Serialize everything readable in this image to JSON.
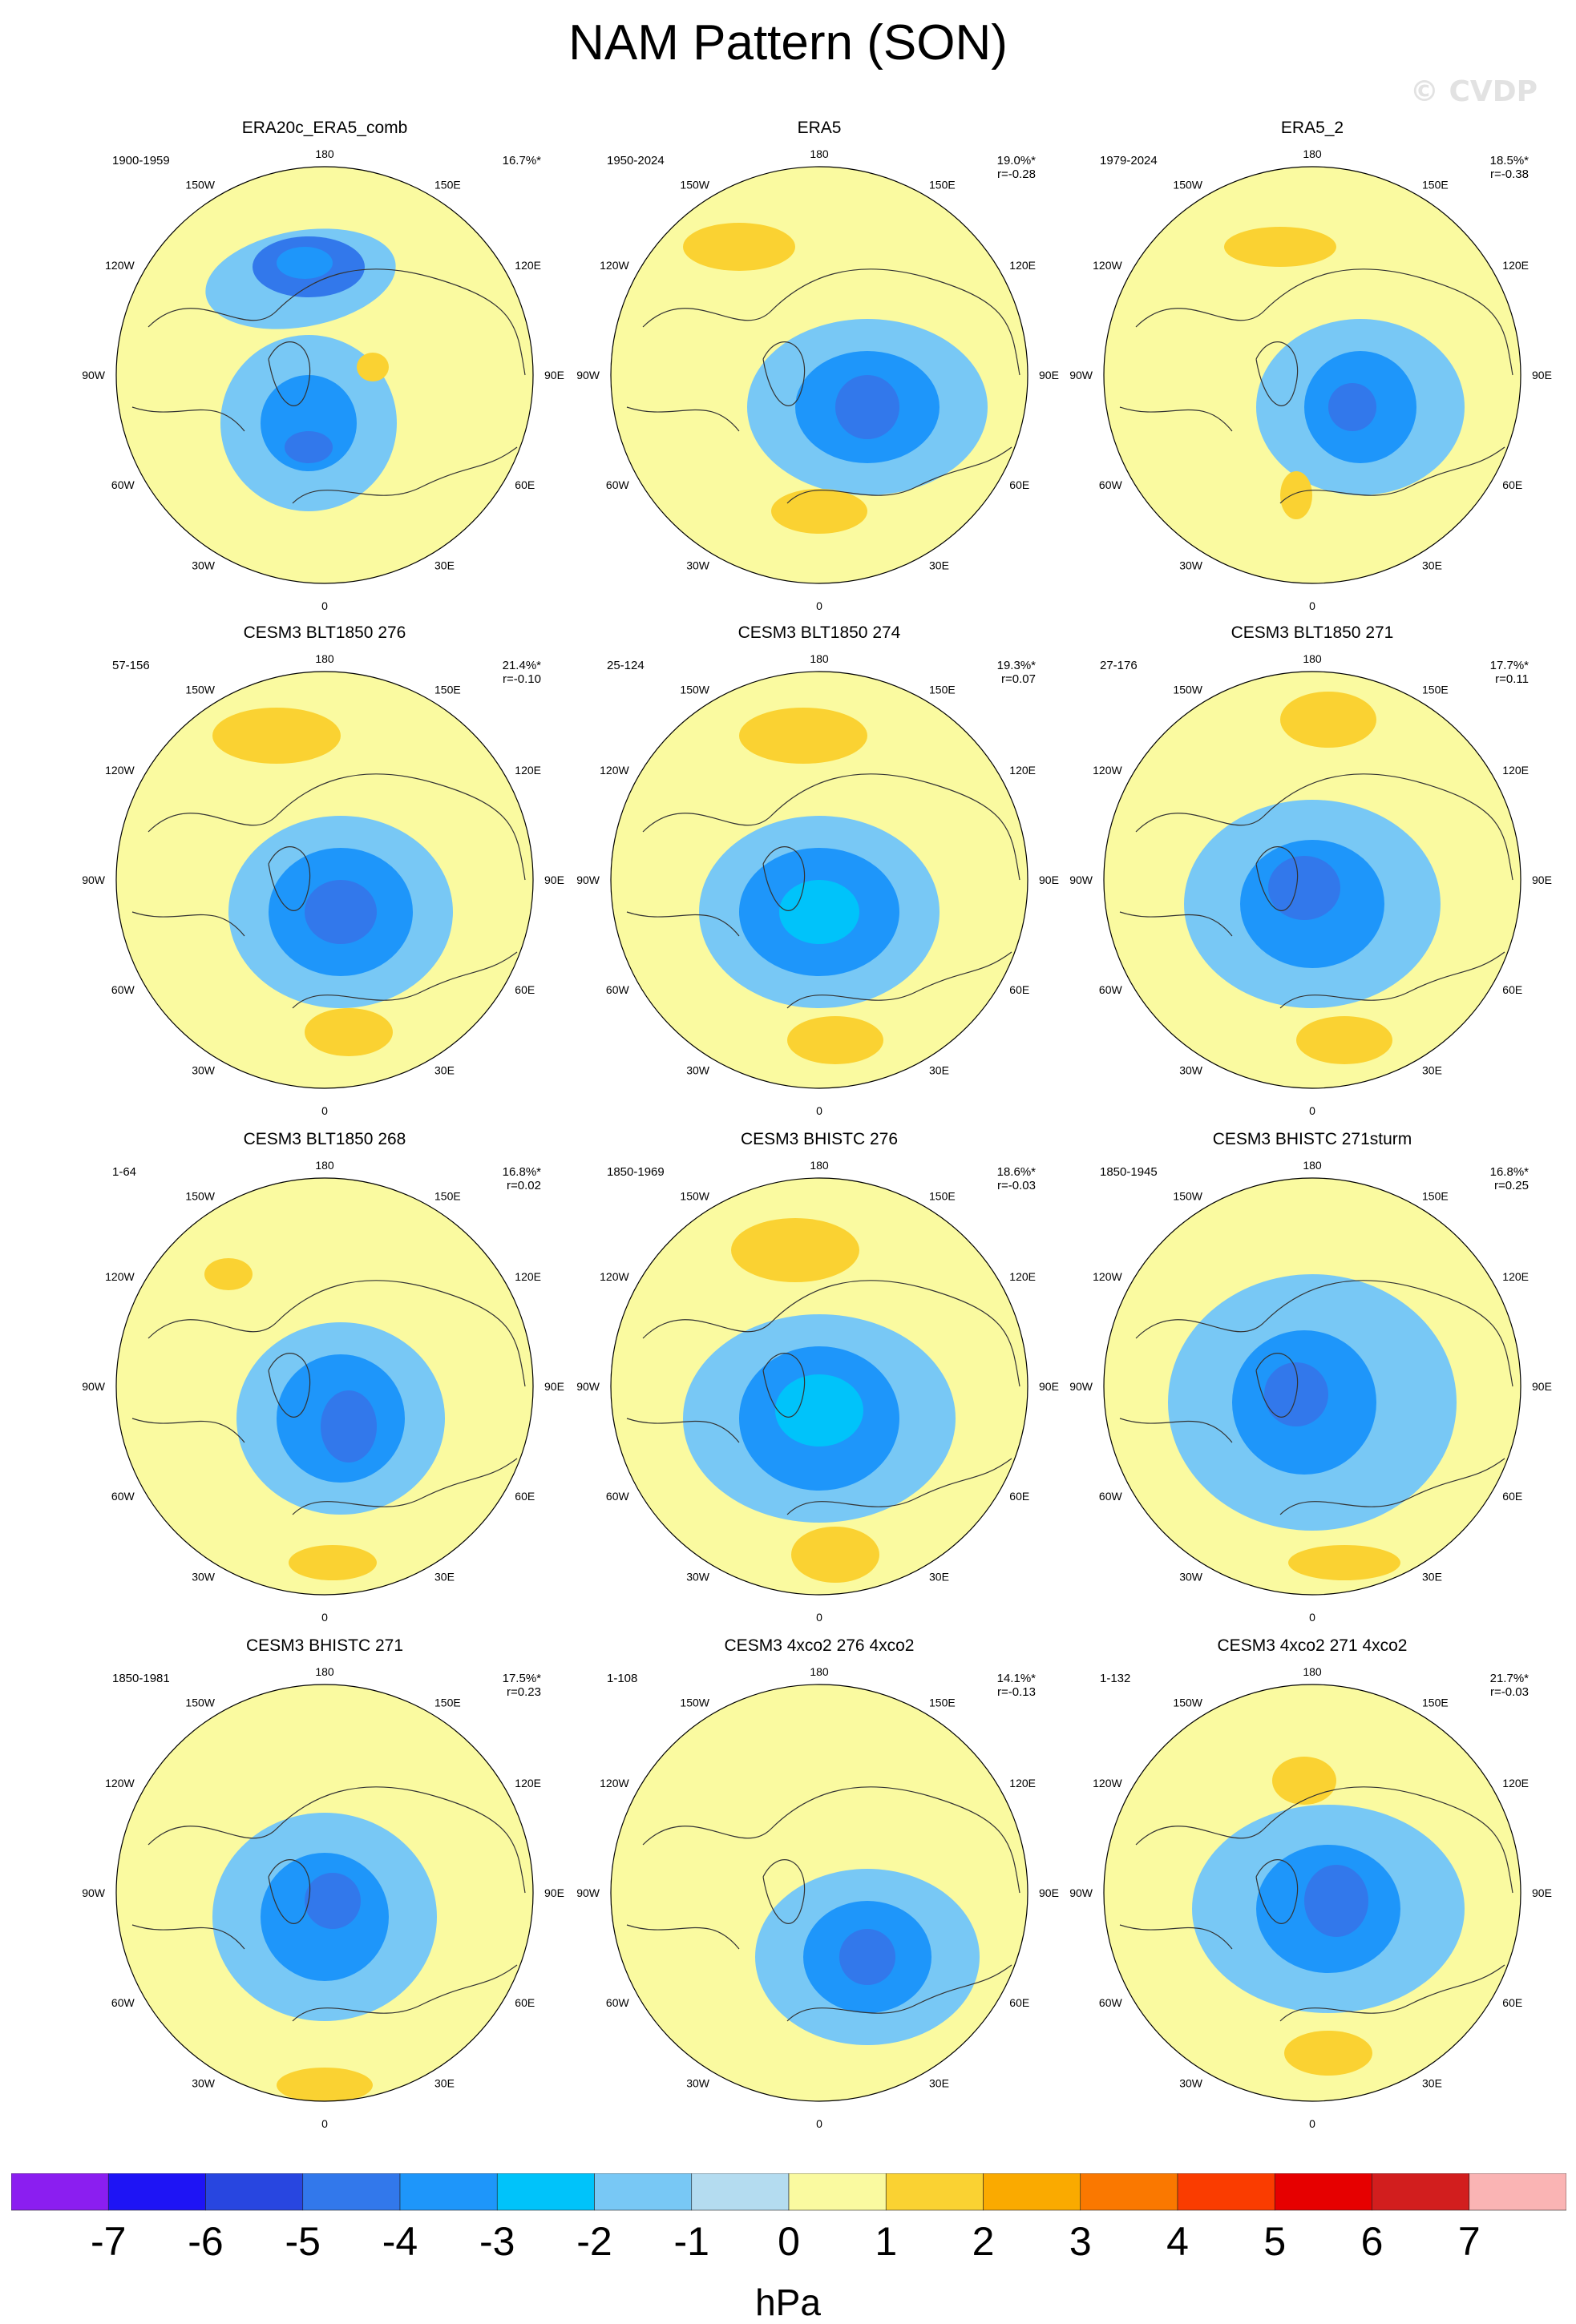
{
  "title": "NAM Pattern (SON)",
  "watermark": "© CVDP",
  "units": "hPa",
  "lon_labels": [
    "180",
    "150E",
    "120E",
    "90E",
    "60E",
    "30E",
    "0",
    "30W",
    "60W",
    "90W",
    "120W",
    "150W"
  ],
  "colorbar": {
    "ticks": [
      "-7",
      "-6",
      "-5",
      "-4",
      "-3",
      "-2",
      "-1",
      "0",
      "1",
      "2",
      "3",
      "4",
      "5",
      "6",
      "7"
    ],
    "colors": [
      "#8b1ef0",
      "#1e14f5",
      "#2846e0",
      "#3278eb",
      "#1e96fa",
      "#00c3fa",
      "#78c8f5",
      "#b4dcf0",
      "#fafaa0",
      "#fad232",
      "#faaa00",
      "#fa7800",
      "#fa3c00",
      "#e60000",
      "#d21e1e",
      "#fab4b4"
    ]
  },
  "panels": [
    {
      "title": "ERA20c_ERA5_comb",
      "period": "1900-1959",
      "pct": "16.7%*",
      "corr": ""
    },
    {
      "title": "ERA5",
      "period": "1950-2024",
      "pct": "19.0%*",
      "corr": "r=-0.28"
    },
    {
      "title": "ERA5_2",
      "period": "1979-2024",
      "pct": "18.5%*",
      "corr": "r=-0.38"
    },
    {
      "title": "CESM3 BLT1850 276",
      "period": "57-156",
      "pct": "21.4%*",
      "corr": "r=-0.10"
    },
    {
      "title": "CESM3 BLT1850 274",
      "period": "25-124",
      "pct": "19.3%*",
      "corr": "r=0.07"
    },
    {
      "title": "CESM3 BLT1850 271",
      "period": "27-176",
      "pct": "17.7%*",
      "corr": "r=0.11"
    },
    {
      "title": "CESM3 BLT1850 268",
      "period": "1-64",
      "pct": "16.8%*",
      "corr": "r=0.02"
    },
    {
      "title": "CESM3 BHISTC 276",
      "period": "1850-1969",
      "pct": "18.6%*",
      "corr": "r=-0.03"
    },
    {
      "title": "CESM3 BHISTC 271sturm",
      "period": "1850-1945",
      "pct": "16.8%*",
      "corr": "r=0.25"
    },
    {
      "title": "CESM3 BHISTC 271",
      "period": "1850-1981",
      "pct": "17.5%*",
      "corr": "r=0.23"
    },
    {
      "title": "CESM3 4xco2 276 4xco2",
      "period": "1-108",
      "pct": "14.1%*",
      "corr": "r=-0.13"
    },
    {
      "title": "CESM3 4xco2 271 4xco2",
      "period": "1-132",
      "pct": "21.7%*",
      "corr": "r=-0.03"
    }
  ]
}
